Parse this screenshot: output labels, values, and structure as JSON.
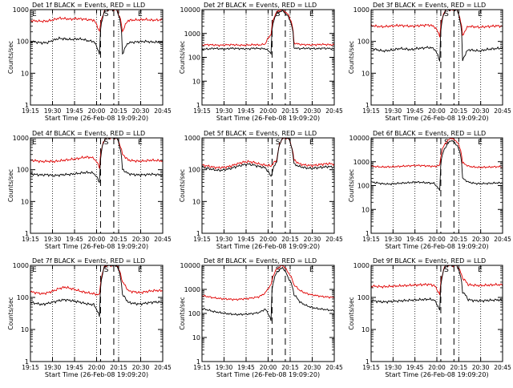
{
  "page": {
    "background": "#ffffff",
    "colors": {
      "events": "#000000",
      "lld": "#e00000",
      "axes": "#000000"
    }
  },
  "chart_data": [
    {
      "type": "line",
      "title": "Det 1f BLACK = Events, RED = LLD",
      "ylabel": "Counts/sec",
      "xlabel": "Start Time (26-Feb-08 19:09:20)",
      "yscale": "log",
      "ylim": [
        1,
        1000
      ],
      "y_ticks": [
        "1",
        "10",
        "100",
        "1000"
      ],
      "x_ticks": [
        "19:15",
        "19:30",
        "19:45",
        "20:00",
        "20:15",
        "20:30",
        "20:45"
      ],
      "markers": [
        "S",
        "E"
      ],
      "series": [
        {
          "color": "#e00000",
          "values": [
            450,
            440,
            430,
            440,
            480,
            540,
            520,
            500,
            520,
            510,
            480,
            470,
            200,
            1000,
            1000,
            1000,
            200,
            460,
            470,
            480,
            490,
            470,
            470,
            480
          ]
        },
        {
          "color": "#000000",
          "values": [
            100,
            95,
            90,
            92,
            110,
            125,
            120,
            115,
            120,
            118,
            105,
            100,
            40,
            1000,
            1000,
            1000,
            40,
            90,
            95,
            98,
            100,
            96,
            95,
            92
          ]
        }
      ]
    },
    {
      "type": "line",
      "title": "Det 2f BLACK = Events, RED = LLD",
      "ylabel": "Counts/sec",
      "xlabel": "Start Time (26-Feb-08 19:09:20)",
      "yscale": "log",
      "ylim": [
        1,
        10000
      ],
      "y_ticks": [
        "1",
        "10",
        "100",
        "1000",
        "10000"
      ],
      "x_ticks": [
        "19:15",
        "19:30",
        "19:45",
        "20:00",
        "20:15",
        "20:30",
        "20:45"
      ],
      "markers": [
        "S",
        "E"
      ],
      "series": [
        {
          "color": "#e00000",
          "values": [
            330,
            340,
            330,
            320,
            330,
            340,
            330,
            320,
            330,
            340,
            330,
            360,
            900,
            8000,
            10000,
            6000,
            400,
            350,
            340,
            330,
            340,
            350,
            340,
            330
          ]
        },
        {
          "color": "#000000",
          "values": [
            230,
            220,
            240,
            230,
            220,
            240,
            235,
            230,
            225,
            240,
            235,
            230,
            150,
            7000,
            9000,
            5000,
            250,
            230,
            240,
            235,
            230,
            240,
            235,
            230
          ]
        }
      ]
    },
    {
      "type": "line",
      "title": "Det 3f BLACK = Events, RED = LLD",
      "ylabel": "Counts/sec",
      "xlabel": "Start Time (26-Feb-08 19:09:20)",
      "yscale": "log",
      "ylim": [
        1,
        1000
      ],
      "y_ticks": [
        "1",
        "10",
        "100",
        "1000"
      ],
      "x_ticks": [
        "19:15",
        "19:30",
        "19:45",
        "20:00",
        "20:15",
        "20:30",
        "20:45"
      ],
      "markers": [
        "S",
        "E"
      ],
      "series": [
        {
          "color": "#e00000",
          "values": [
            320,
            300,
            290,
            300,
            310,
            320,
            310,
            300,
            310,
            320,
            330,
            300,
            150,
            1000,
            1000,
            1000,
            150,
            300,
            290,
            280,
            290,
            300,
            310,
            300
          ]
        },
        {
          "color": "#000000",
          "values": [
            60,
            55,
            50,
            52,
            55,
            60,
            58,
            55,
            60,
            62,
            65,
            60,
            25,
            1000,
            1000,
            1000,
            25,
            55,
            52,
            50,
            55,
            58,
            60,
            62
          ]
        }
      ]
    },
    {
      "type": "line",
      "title": "Det 4f BLACK = Events, RED = LLD",
      "ylabel": "Counts/sec",
      "xlabel": "Start Time (26-Feb-08 19:09:20)",
      "yscale": "log",
      "ylim": [
        1,
        1000
      ],
      "y_ticks": [
        "1",
        "10",
        "100",
        "1000"
      ],
      "x_ticks": [
        "19:15",
        "19:30",
        "19:45",
        "20:00",
        "20:15",
        "20:30",
        "20:45"
      ],
      "markers": [
        "S",
        "E"
      ],
      "series": [
        {
          "color": "#e00000",
          "values": [
            200,
            190,
            180,
            185,
            180,
            190,
            200,
            210,
            220,
            240,
            250,
            230,
            120,
            1000,
            1000,
            1000,
            300,
            200,
            190,
            185,
            190,
            200,
            195,
            190
          ]
        },
        {
          "color": "#000000",
          "values": [
            75,
            70,
            68,
            70,
            65,
            68,
            70,
            72,
            75,
            80,
            82,
            78,
            40,
            1000,
            1000,
            1000,
            100,
            75,
            70,
            68,
            70,
            72,
            70,
            68
          ]
        }
      ]
    },
    {
      "type": "line",
      "title": "Det 5f BLACK = Events, RED = LLD",
      "ylabel": "Counts/sec",
      "xlabel": "Start Time (26-Feb-08 19:09:20)",
      "yscale": "log",
      "ylim": [
        1,
        1000
      ],
      "y_ticks": [
        "1",
        "10",
        "100",
        "1000"
      ],
      "x_ticks": [
        "19:15",
        "19:30",
        "19:45",
        "20:00",
        "20:15",
        "20:30",
        "20:45"
      ],
      "markers": [
        "S",
        "E"
      ],
      "series": [
        {
          "color": "#e00000",
          "values": [
            140,
            130,
            120,
            115,
            120,
            130,
            150,
            170,
            180,
            170,
            150,
            140,
            130,
            200,
            1000,
            1000,
            200,
            150,
            140,
            135,
            140,
            150,
            155,
            150
          ]
        },
        {
          "color": "#000000",
          "values": [
            120,
            110,
            100,
            95,
            100,
            110,
            125,
            140,
            150,
            140,
            125,
            115,
            60,
            180,
            1000,
            1000,
            150,
            125,
            115,
            110,
            115,
            120,
            125,
            120
          ]
        }
      ]
    },
    {
      "type": "line",
      "title": "Det 6f BLACK = Events, RED = LLD",
      "ylabel": "Counts/sec",
      "xlabel": "Start Time (26-Feb-08 19:09:20)",
      "yscale": "log",
      "ylim": [
        1,
        10000
      ],
      "y_ticks": [
        "1",
        "10",
        "100",
        "1000",
        "10000"
      ],
      "x_ticks": [
        "19:15",
        "19:30",
        "19:45",
        "20:00",
        "20:15",
        "20:30",
        "20:45"
      ],
      "markers": [
        "S",
        "E"
      ],
      "series": [
        {
          "color": "#e00000",
          "values": [
            650,
            620,
            600,
            610,
            620,
            640,
            660,
            680,
            700,
            690,
            660,
            640,
            700,
            6000,
            10000,
            7000,
            900,
            650,
            600,
            580,
            590,
            600,
            620,
            610
          ]
        },
        {
          "color": "#000000",
          "values": [
            140,
            130,
            120,
            115,
            120,
            125,
            130,
            135,
            140,
            135,
            130,
            125,
            60,
            4000,
            8000,
            5000,
            200,
            140,
            125,
            120,
            122,
            125,
            130,
            128
          ]
        }
      ]
    },
    {
      "type": "line",
      "title": "Det 7f BLACK = Events, RED = LLD",
      "ylabel": "Counts/sec",
      "xlabel": "Start Time (26-Feb-08 19:09:20)",
      "yscale": "log",
      "ylim": [
        1,
        1000
      ],
      "y_ticks": [
        "1",
        "10",
        "100",
        "1000"
      ],
      "x_ticks": [
        "19:15",
        "19:30",
        "19:45",
        "20:00",
        "20:15",
        "20:30",
        "20:45"
      ],
      "markers": [
        "S",
        "E"
      ],
      "series": [
        {
          "color": "#e00000",
          "values": [
            150,
            140,
            130,
            140,
            160,
            190,
            210,
            190,
            170,
            150,
            140,
            130,
            120,
            1000,
            1000,
            1000,
            300,
            160,
            150,
            140,
            150,
            160,
            165,
            160
          ]
        },
        {
          "color": "#000000",
          "values": [
            70,
            65,
            60,
            65,
            72,
            80,
            85,
            80,
            75,
            68,
            62,
            60,
            25,
            1000,
            1000,
            1000,
            120,
            70,
            65,
            62,
            66,
            70,
            72,
            70
          ]
        }
      ]
    },
    {
      "type": "line",
      "title": "Det 8f BLACK = Events, RED = LLD",
      "ylabel": "Counts/sec",
      "xlabel": "Start Time (26-Feb-08 19:09:20)",
      "yscale": "log",
      "ylim": [
        1,
        10000
      ],
      "y_ticks": [
        "1",
        "10",
        "100",
        "1000",
        "10000"
      ],
      "x_ticks": [
        "19:15",
        "19:30",
        "19:45",
        "20:00",
        "20:15",
        "20:30",
        "20:45"
      ],
      "markers": [
        "S",
        "E"
      ],
      "series": [
        {
          "color": "#e00000",
          "values": [
            550,
            500,
            450,
            420,
            400,
            390,
            380,
            400,
            420,
            450,
            500,
            700,
            1500,
            7000,
            10000,
            5000,
            1500,
            900,
            700,
            600,
            550,
            500,
            480,
            460
          ]
        },
        {
          "color": "#000000",
          "values": [
            160,
            140,
            120,
            110,
            100,
            95,
            90,
            92,
            95,
            100,
            110,
            150,
            50,
            5000,
            8000,
            3000,
            600,
            300,
            220,
            180,
            160,
            150,
            140,
            130
          ]
        }
      ]
    },
    {
      "type": "line",
      "title": "Det 9f BLACK = Events, RED = LLD",
      "ylabel": "Counts/sec",
      "xlabel": "Start Time (26-Feb-08 19:09:20)",
      "yscale": "log",
      "ylim": [
        1,
        1000
      ],
      "y_ticks": [
        "1",
        "10",
        "100",
        "1000"
      ],
      "x_ticks": [
        "19:15",
        "19:30",
        "19:45",
        "20:00",
        "20:15",
        "20:30",
        "20:45"
      ],
      "markers": [
        "S",
        "E"
      ],
      "series": [
        {
          "color": "#e00000",
          "values": [
            230,
            220,
            215,
            220,
            225,
            230,
            235,
            240,
            245,
            250,
            255,
            240,
            120,
            1000,
            1000,
            1000,
            400,
            250,
            240,
            235,
            240,
            245,
            250,
            245
          ]
        },
        {
          "color": "#000000",
          "values": [
            80,
            76,
            72,
            74,
            76,
            78,
            80,
            82,
            84,
            86,
            88,
            84,
            40,
            1000,
            1000,
            1000,
            150,
            85,
            80,
            78,
            80,
            82,
            84,
            82
          ]
        }
      ]
    }
  ]
}
